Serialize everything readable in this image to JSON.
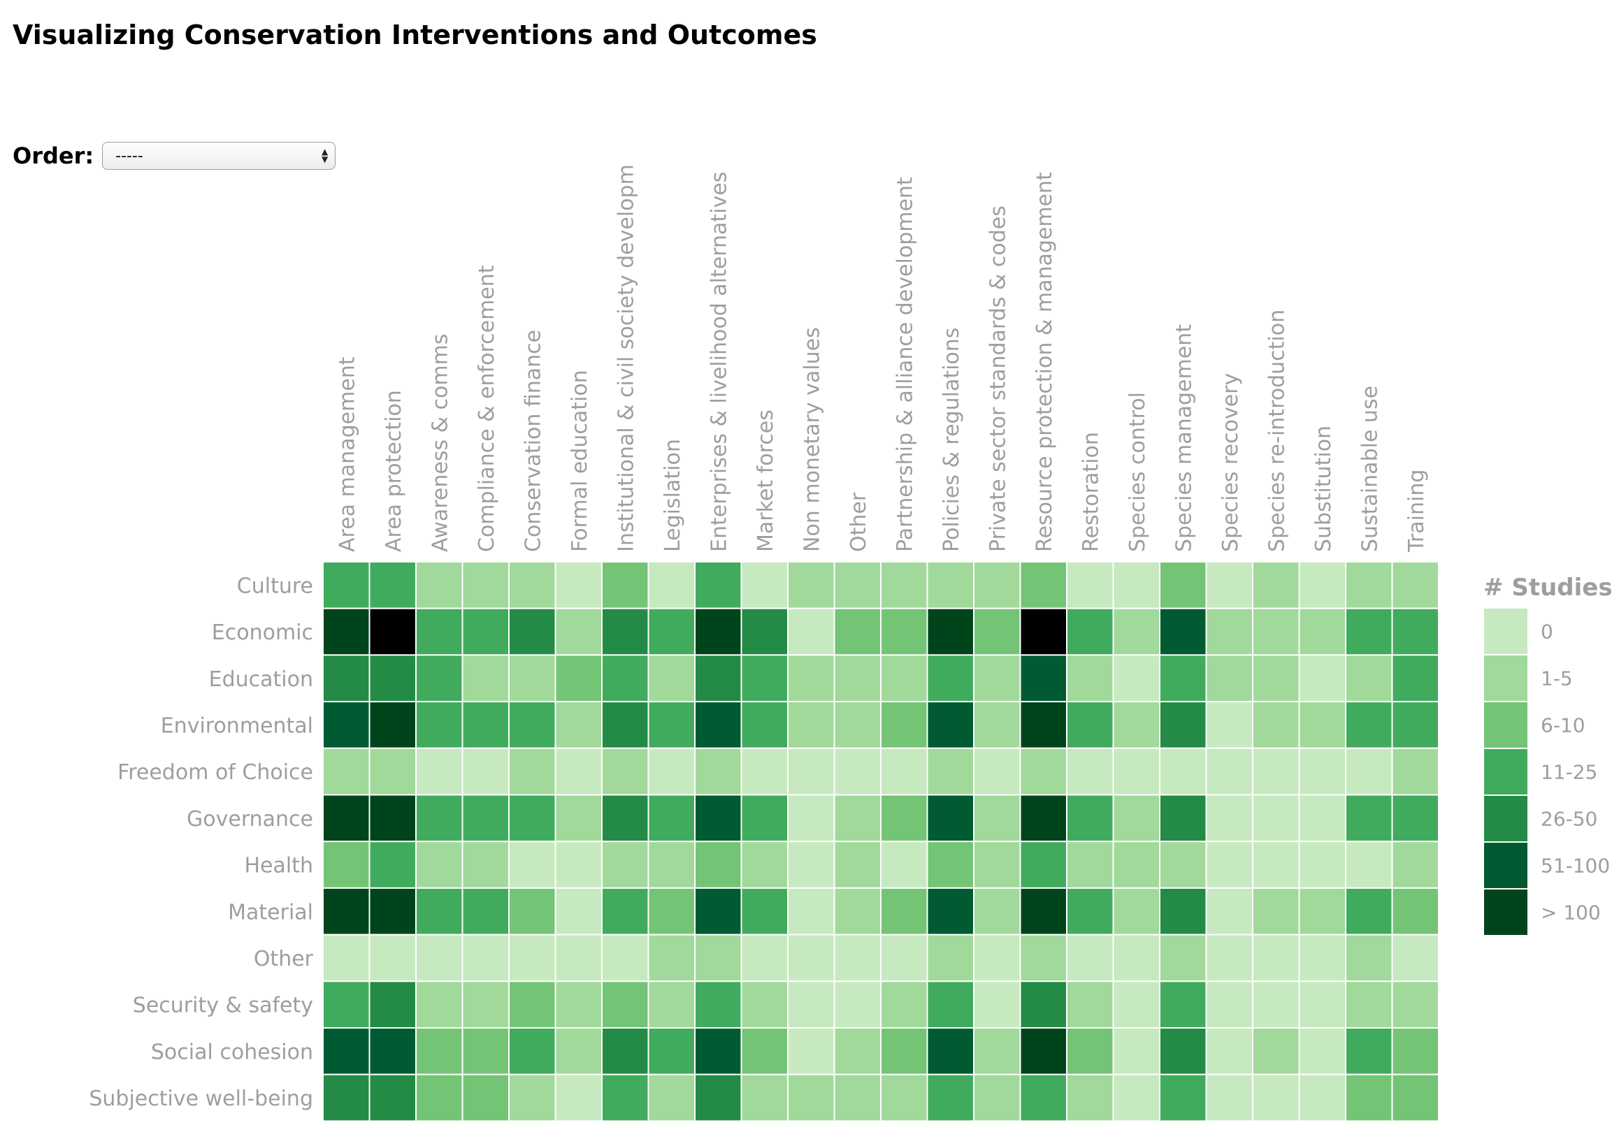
{
  "title": "Visualizing Conservation Interventions and Outcomes",
  "order": {
    "label": "Order:",
    "selected": "-----"
  },
  "chart_data": {
    "type": "heatmap",
    "x_categories": [
      "Area management",
      "Area protection",
      "Awareness & comms",
      "Compliance & enforcement",
      "Conservation finance",
      "Formal education",
      "Institutional & civil society developm",
      "Legislation",
      "Enterprises & livelihood alternatives",
      "Market forces",
      "Non monetary values",
      "Other",
      "Partnership & alliance development",
      "Policies & regulations",
      "Private sector standards & codes",
      "Resource protection & management",
      "Restoration",
      "Species control",
      "Species management",
      "Species recovery",
      "Species re-introduction",
      "Substitution",
      "Sustainable use",
      "Training"
    ],
    "y_categories": [
      "Culture",
      "Economic",
      "Education",
      "Environmental",
      "Freedom of Choice",
      "Governance",
      "Health",
      "Material",
      "Other",
      "Security & safety",
      "Social cohesion",
      "Subjective well-being"
    ],
    "legend": {
      "title": "# Studies",
      "bins": [
        "0",
        "1-5",
        "6-10",
        "11-25",
        "26-50",
        "51-100",
        "> 100"
      ],
      "colors": [
        "#c7e9c0",
        "#a1d99b",
        "#74c476",
        "#41ab5d",
        "#238b45",
        "#005a32",
        "#00441b"
      ]
    },
    "extra_color": "#000000",
    "color_index_matrix": [
      [
        3,
        3,
        1,
        1,
        1,
        0,
        2,
        0,
        3,
        0,
        1,
        1,
        1,
        1,
        1,
        2,
        0,
        0,
        2,
        0,
        1,
        0,
        1,
        1
      ],
      [
        6,
        7,
        3,
        3,
        4,
        1,
        4,
        3,
        6,
        4,
        0,
        2,
        2,
        6,
        2,
        7,
        3,
        1,
        5,
        1,
        1,
        1,
        3,
        3
      ],
      [
        4,
        4,
        3,
        1,
        1,
        2,
        3,
        1,
        4,
        3,
        1,
        1,
        1,
        3,
        1,
        5,
        1,
        0,
        3,
        1,
        1,
        0,
        1,
        3
      ],
      [
        5,
        6,
        3,
        3,
        3,
        1,
        4,
        3,
        5,
        3,
        1,
        1,
        2,
        5,
        1,
        6,
        3,
        1,
        4,
        0,
        1,
        1,
        3,
        3
      ],
      [
        1,
        1,
        0,
        0,
        1,
        0,
        1,
        0,
        1,
        0,
        0,
        0,
        0,
        1,
        0,
        1,
        0,
        0,
        0,
        0,
        0,
        0,
        0,
        1
      ],
      [
        6,
        6,
        3,
        3,
        3,
        1,
        4,
        3,
        5,
        3,
        0,
        1,
        2,
        5,
        1,
        6,
        3,
        1,
        4,
        0,
        0,
        0,
        3,
        3
      ],
      [
        2,
        3,
        1,
        1,
        0,
        0,
        1,
        1,
        2,
        1,
        0,
        1,
        0,
        2,
        1,
        3,
        1,
        1,
        1,
        0,
        0,
        0,
        0,
        1
      ],
      [
        6,
        6,
        3,
        3,
        2,
        0,
        3,
        2,
        5,
        3,
        0,
        1,
        2,
        5,
        1,
        6,
        3,
        1,
        4,
        0,
        1,
        1,
        3,
        2
      ],
      [
        0,
        0,
        0,
        0,
        0,
        0,
        0,
        1,
        1,
        0,
        0,
        0,
        0,
        1,
        0,
        1,
        0,
        0,
        1,
        0,
        0,
        0,
        1,
        0
      ],
      [
        3,
        4,
        1,
        1,
        2,
        1,
        2,
        1,
        3,
        1,
        0,
        0,
        1,
        3,
        0,
        4,
        1,
        0,
        3,
        0,
        0,
        0,
        1,
        1
      ],
      [
        5,
        5,
        2,
        2,
        3,
        1,
        4,
        3,
        5,
        2,
        0,
        1,
        2,
        5,
        1,
        6,
        2,
        0,
        4,
        0,
        1,
        0,
        3,
        2
      ],
      [
        4,
        4,
        2,
        2,
        1,
        0,
        3,
        1,
        4,
        1,
        1,
        1,
        1,
        3,
        1,
        3,
        1,
        0,
        3,
        0,
        0,
        0,
        2,
        2
      ]
    ]
  }
}
